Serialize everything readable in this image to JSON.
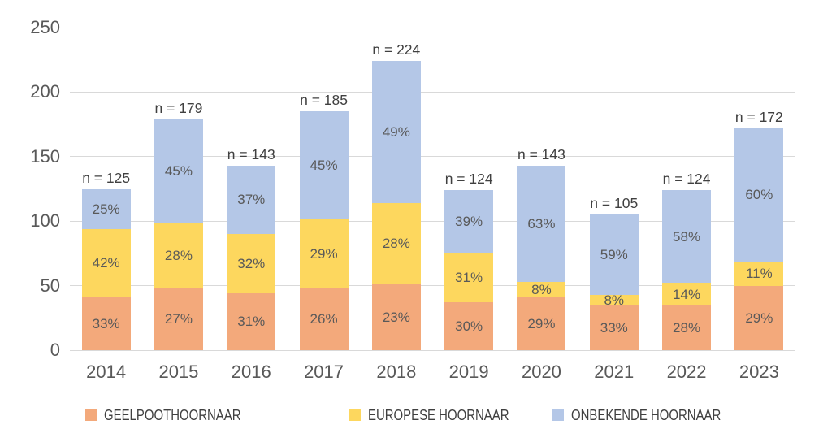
{
  "chart_data": {
    "type": "bar",
    "subtype": "stacked-column",
    "title": "",
    "xlabel": "",
    "ylabel": "",
    "categories": [
      "2014",
      "2015",
      "2016",
      "2017",
      "2018",
      "2019",
      "2020",
      "2021",
      "2022",
      "2023"
    ],
    "totals": [
      125,
      179,
      143,
      185,
      224,
      124,
      143,
      105,
      124,
      172
    ],
    "bar_labels": [
      "n = 125",
      "n = 179",
      "n = 143",
      "n = 185",
      "n = 224",
      "n = 124",
      "n = 143",
      "n = 105",
      "n = 124",
      "n = 172"
    ],
    "series": [
      {
        "name": "GEELPOOTHOORNAAR",
        "color": "#F3A97B",
        "percentages": [
          33,
          27,
          31,
          26,
          23,
          30,
          29,
          33,
          28,
          29
        ],
        "labels": [
          "33%",
          "27%",
          "31%",
          "26%",
          "23%",
          "30%",
          "29%",
          "33%",
          "28%",
          "29%"
        ]
      },
      {
        "name": "EUROPESE HOORNAAR",
        "color": "#FDD75E",
        "percentages": [
          42,
          28,
          32,
          29,
          28,
          31,
          8,
          8,
          14,
          11
        ],
        "labels": [
          "42%",
          "28%",
          "32%",
          "29%",
          "28%",
          "31%",
          "8%",
          "8%",
          "14%",
          "11%"
        ]
      },
      {
        "name": "ONBEKENDE HOORNAAR",
        "color": "#B4C7E7",
        "percentages": [
          25,
          45,
          37,
          45,
          49,
          39,
          63,
          59,
          58,
          60
        ],
        "labels": [
          "25%",
          "45%",
          "37%",
          "45%",
          "49%",
          "39%",
          "63%",
          "59%",
          "58%",
          "60%"
        ]
      }
    ],
    "y_axis": {
      "ticks": [
        250,
        200,
        150,
        100,
        50,
        0
      ],
      "min": 0,
      "max": 250
    },
    "grid": true,
    "legend_position": "bottom",
    "colors": {
      "gridline": "#d9d9d9",
      "tick_text": "#595959",
      "percent_text": "#595959",
      "bar_label_text": "#404040",
      "legend_text": "#404040",
      "background": "#ffffff"
    }
  }
}
